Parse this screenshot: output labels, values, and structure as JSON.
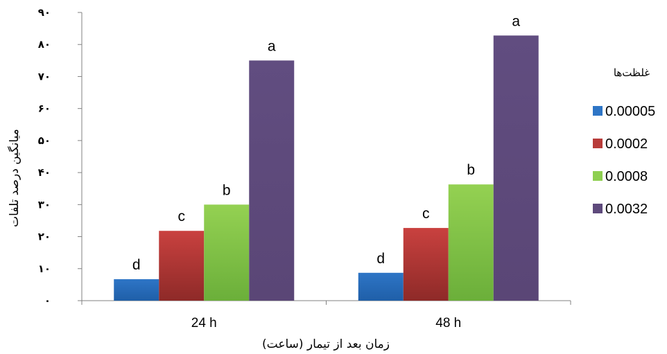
{
  "chart_data": {
    "type": "bar",
    "xlabel": "زمان بعد از تیمار (ساعت)",
    "ylabel": "میانگین درصد تلفات",
    "categories": [
      "24 h",
      "48 h"
    ],
    "ylim": [
      0,
      90
    ],
    "yticks": [
      0,
      10,
      20,
      30,
      40,
      50,
      60,
      70,
      80,
      90
    ],
    "ytick_labels": [
      "۰",
      "۱۰",
      "۲۰",
      "۳۰",
      "۴۰",
      "۵۰",
      "۶۰",
      "۷۰",
      "۸۰",
      "۹۰"
    ],
    "grid": false,
    "legend": {
      "title": "غلظت‌ها",
      "position": "right"
    },
    "series": [
      {
        "name": "0.00005",
        "color": "#2E75C6",
        "values": [
          6.7,
          8.7
        ],
        "labels": [
          "d",
          "d"
        ]
      },
      {
        "name": "0.0002",
        "color": "#B83C3A",
        "values": [
          21.8,
          22.7
        ],
        "labels": [
          "c",
          "c"
        ]
      },
      {
        "name": "0.0008",
        "color": "#8ECF50",
        "values": [
          30.0,
          36.3
        ],
        "labels": [
          "b",
          "b"
        ]
      },
      {
        "name": "0.0032",
        "color": "#5E4A7C",
        "values": [
          75.0,
          82.8
        ],
        "labels": [
          "a",
          "a"
        ]
      }
    ]
  }
}
